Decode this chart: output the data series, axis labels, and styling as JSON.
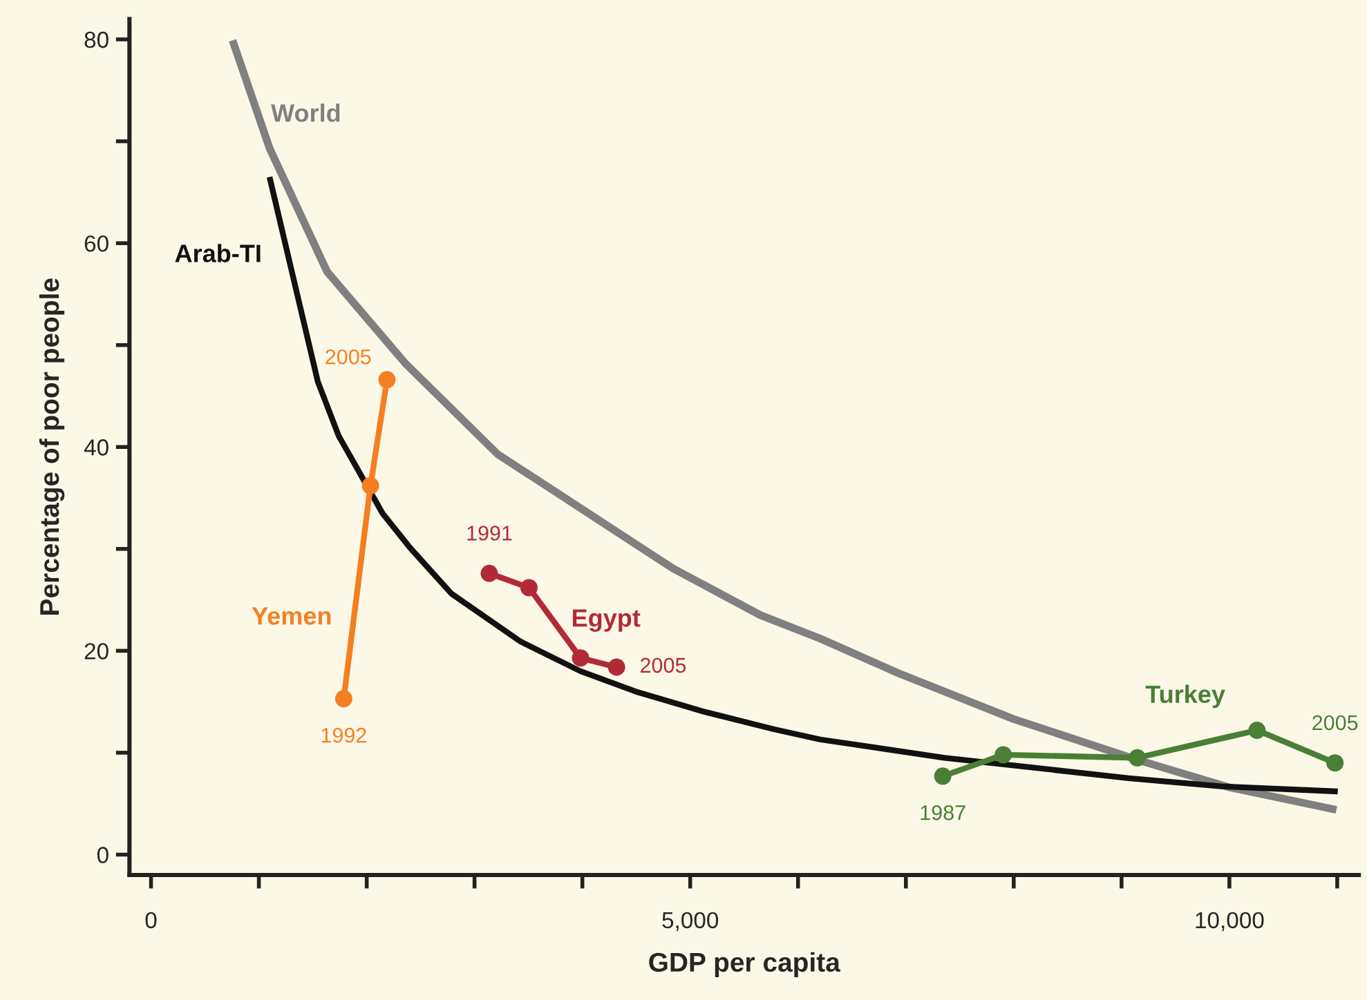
{
  "chart_data": {
    "type": "line",
    "xlabel": "GDP per capita",
    "ylabel": "Percentage of poor people",
    "series": [
      {
        "name": "World",
        "color": "#808080",
        "marker": "none",
        "x": [
          756,
          1100,
          1633,
          2359,
          3214,
          4838,
          5651,
          6205,
          6932,
          8000,
          9146,
          10000,
          10992
        ],
        "values": [
          79.9,
          69.3,
          57.2,
          48.2,
          39.3,
          28.1,
          23.5,
          21.2,
          17.8,
          13.3,
          9.3,
          6.6,
          4.4
        ]
      },
      {
        "name": "Arab-TI",
        "color": "#111111",
        "marker": "none",
        "x": [
          1099,
          1547,
          1740,
          2146,
          2403,
          2787,
          3428,
          3983,
          4496,
          5137,
          5778,
          6205,
          7359,
          9068,
          9923,
          11005
        ],
        "values": [
          66.5,
          46.4,
          41.1,
          33.5,
          30.1,
          25.6,
          20.9,
          18.0,
          16.0,
          14.0,
          12.3,
          11.3,
          9.5,
          7.5,
          6.7,
          6.2
        ]
      },
      {
        "name": "Yemen",
        "color": "#f47f20",
        "marker": "circle",
        "x": [
          1787,
          2035,
          2188
        ],
        "values": [
          15.3,
          36.2,
          46.6
        ]
      },
      {
        "name": "Egypt",
        "color": "#b22a35",
        "marker": "circle",
        "x": [
          3137,
          3505,
          3983,
          4317
        ],
        "values": [
          27.6,
          26.2,
          19.3,
          18.4
        ]
      },
      {
        "name": "Turkey",
        "color": "#4a7f35",
        "marker": "circle",
        "x": [
          7342,
          7903,
          9146,
          10256,
          10979
        ],
        "values": [
          7.7,
          9.8,
          9.5,
          12.2,
          9.0
        ]
      }
    ],
    "annotations": [
      {
        "text": "2005",
        "x": 2188,
        "y": 46.6
      },
      {
        "text": "1992",
        "x": 1787,
        "y": 15.3
      },
      {
        "text": "1991",
        "x": 3137,
        "y": 27.6
      },
      {
        "text": "2005",
        "x": 4317,
        "y": 18.4
      },
      {
        "text": "1987",
        "x": 7342,
        "y": 7.7
      },
      {
        "text": "2005",
        "x": 10979,
        "y": 9.0
      }
    ],
    "xlim": [
      -200,
      11200
    ],
    "ylim": [
      -2,
      82
    ],
    "xticks": [
      0,
      {
        "value": 1000,
        "label": null
      },
      {
        "value": 2000,
        "label": null
      },
      {
        "value": 3000,
        "label": null
      },
      {
        "value": 4000,
        "label": null
      },
      {
        "value": 5000,
        "label": "5,000"
      },
      {
        "value": 6000,
        "label": null
      },
      {
        "value": 7000,
        "label": null
      },
      {
        "value": 8000,
        "label": null
      },
      {
        "value": 9000,
        "label": null
      },
      {
        "value": 10000,
        "label": "10,000"
      },
      {
        "value": 11000,
        "label": null
      }
    ],
    "yticks": [
      0,
      {
        "value": 10,
        "label": null
      },
      20,
      {
        "value": 30,
        "label": null
      },
      40,
      {
        "value": 50,
        "label": null
      },
      60,
      {
        "value": 70,
        "label": null
      },
      80
    ],
    "grid": false,
    "legend": false,
    "line_style": "solid"
  }
}
